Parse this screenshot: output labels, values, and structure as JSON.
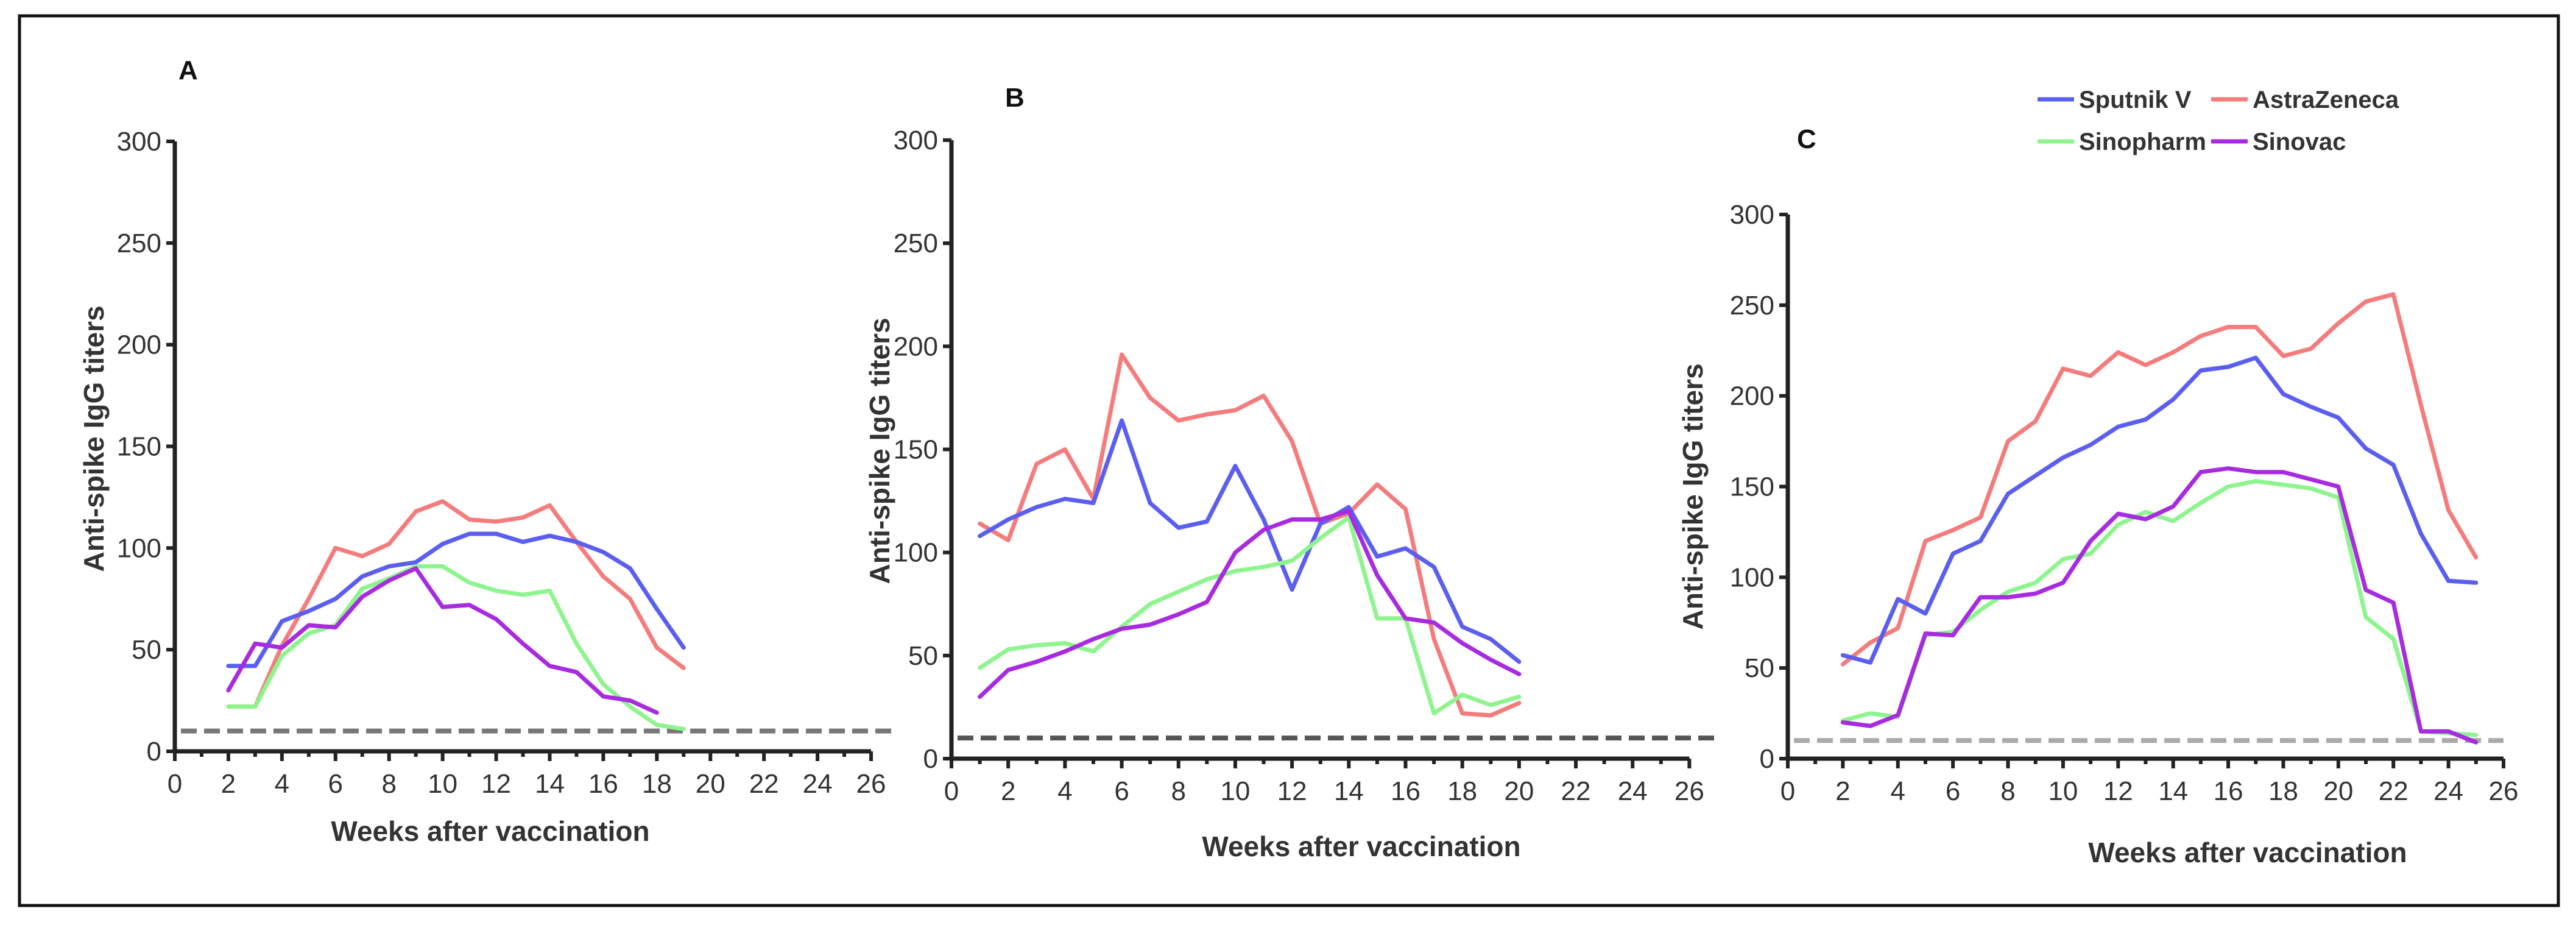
{
  "legend": [
    {
      "name": "Sputnik V",
      "color": "#5b5ff0"
    },
    {
      "name": "AstraZeneca",
      "color": "#f47c7c"
    },
    {
      "name": "Sinopharm",
      "color": "#8ef58e"
    },
    {
      "name": "Sinovac",
      "color": "#a82be0"
    }
  ],
  "chart_data": [
    {
      "type": "line",
      "panel": "A",
      "xlabel": "Weeks after vaccination",
      "ylabel": "Anti-spike IgG titers",
      "xlim": [
        0,
        27
      ],
      "ylim": [
        0,
        300
      ],
      "xticks": [
        0,
        2,
        4,
        6,
        8,
        10,
        12,
        14,
        16,
        18,
        20,
        22,
        24,
        26
      ],
      "yticks": [
        0,
        50,
        100,
        150,
        200,
        250,
        300
      ],
      "threshold": {
        "y": 10,
        "color": "#777777"
      },
      "series": [
        {
          "name": "AstraZeneca",
          "color": "#f47c7c",
          "x": [
            2,
            3,
            4,
            5,
            6,
            7,
            8,
            9,
            10,
            11,
            12,
            13,
            14,
            15,
            16,
            17,
            18,
            19
          ],
          "values": [
            22,
            22,
            52,
            75,
            100,
            96,
            102,
            118,
            123,
            114,
            113,
            115,
            121,
            103,
            86,
            75,
            51,
            41
          ]
        },
        {
          "name": "Sputnik V",
          "color": "#5b5ff0",
          "x": [
            2,
            3,
            4,
            5,
            6,
            7,
            8,
            9,
            10,
            11,
            12,
            13,
            14,
            15,
            16,
            17,
            18,
            19
          ],
          "values": [
            42,
            42,
            64,
            69,
            75,
            86,
            91,
            93,
            102,
            107,
            107,
            103,
            106,
            103,
            98,
            90,
            70,
            51
          ]
        },
        {
          "name": "Sinopharm",
          "color": "#8ef58e",
          "x": [
            2,
            3,
            4,
            5,
            6,
            7,
            8,
            9,
            10,
            11,
            12,
            13,
            14,
            15,
            16,
            17,
            18,
            19
          ],
          "values": [
            22,
            22,
            47,
            58,
            62,
            80,
            85,
            91,
            91,
            83,
            79,
            77,
            79,
            53,
            33,
            22,
            13,
            11
          ]
        },
        {
          "name": "Sinovac",
          "color": "#a82be0",
          "x": [
            2,
            3,
            4,
            5,
            6,
            7,
            8,
            9,
            10,
            11,
            12,
            13,
            14,
            15,
            16,
            17,
            18
          ],
          "values": [
            30,
            53,
            51,
            62,
            61,
            76,
            84,
            90,
            71,
            72,
            65,
            53,
            42,
            39,
            27,
            25,
            19
          ]
        }
      ]
    },
    {
      "type": "line",
      "panel": "B",
      "xlabel": "Weeks after vaccination",
      "ylabel": "Anti-spike IgG titers",
      "xlim": [
        0,
        27
      ],
      "ylim": [
        0,
        300
      ],
      "xticks": [
        0,
        2,
        4,
        6,
        8,
        10,
        12,
        14,
        16,
        18,
        20,
        22,
        24,
        26
      ],
      "yticks": [
        0,
        50,
        100,
        150,
        200,
        250,
        300
      ],
      "threshold": {
        "y": 10,
        "color": "#555555"
      },
      "series": [
        {
          "name": "AstraZeneca",
          "color": "#f47c7c",
          "x": [
            1,
            2,
            3,
            4,
            5,
            6,
            7,
            8,
            9,
            10,
            11,
            12,
            13,
            14,
            15,
            16,
            17,
            18,
            19,
            20
          ],
          "values": [
            114,
            106,
            143,
            150,
            126,
            196,
            175,
            164,
            167,
            169,
            176,
            154,
            114,
            119,
            133,
            121,
            58,
            22,
            21,
            27
          ]
        },
        {
          "name": "Sputnik V",
          "color": "#5b5ff0",
          "x": [
            1,
            2,
            3,
            4,
            5,
            6,
            7,
            8,
            9,
            10,
            11,
            12,
            13,
            14,
            15,
            16,
            17,
            18,
            19,
            20
          ],
          "values": [
            108,
            116,
            122,
            126,
            124,
            164,
            124,
            112,
            115,
            142,
            116,
            82,
            114,
            122,
            98,
            102,
            93,
            64,
            58,
            47
          ]
        },
        {
          "name": "Sinopharm",
          "color": "#8ef58e",
          "x": [
            1,
            2,
            3,
            4,
            5,
            6,
            7,
            8,
            9,
            10,
            11,
            12,
            13,
            14,
            15,
            16,
            17,
            18,
            19,
            20
          ],
          "values": [
            44,
            53,
            55,
            56,
            52,
            64,
            75,
            81,
            87,
            91,
            93,
            96,
            107,
            117,
            68,
            68,
            22,
            31,
            26,
            30
          ]
        },
        {
          "name": "Sinovac",
          "color": "#a82be0",
          "x": [
            1,
            2,
            3,
            4,
            5,
            6,
            7,
            8,
            9,
            10,
            11,
            12,
            13,
            14,
            15,
            16,
            17,
            18,
            19,
            20
          ],
          "values": [
            30,
            43,
            47,
            52,
            58,
            63,
            65,
            70,
            76,
            100,
            111,
            116,
            116,
            120,
            89,
            68,
            66,
            56,
            48,
            41
          ]
        }
      ]
    },
    {
      "type": "line",
      "panel": "C",
      "xlabel": "Weeks after vaccination",
      "ylabel": "Anti-spike IgG titers",
      "xlim": [
        0,
        26
      ],
      "ylim": [
        0,
        300
      ],
      "xticks": [
        0,
        2,
        4,
        6,
        8,
        10,
        12,
        14,
        16,
        18,
        20,
        22,
        24,
        26
      ],
      "yticks": [
        0,
        50,
        100,
        150,
        200,
        250,
        300
      ],
      "threshold": {
        "y": 10,
        "color": "#aaaaaa"
      },
      "series": [
        {
          "name": "AstraZeneca",
          "color": "#f47c7c",
          "x": [
            2,
            3,
            4,
            5,
            6,
            7,
            8,
            9,
            10,
            11,
            12,
            13,
            14,
            15,
            16,
            17,
            18,
            19,
            20,
            21,
            22,
            23,
            24,
            25
          ],
          "values": [
            52,
            64,
            72,
            120,
            126,
            133,
            175,
            186,
            215,
            211,
            224,
            217,
            224,
            233,
            238,
            238,
            222,
            226,
            240,
            252,
            256,
            195,
            137,
            111
          ]
        },
        {
          "name": "Sputnik V",
          "color": "#5b5ff0",
          "x": [
            2,
            3,
            4,
            5,
            6,
            7,
            8,
            9,
            10,
            11,
            12,
            13,
            14,
            15,
            16,
            17,
            18,
            19,
            20,
            21,
            22,
            23,
            24,
            25
          ],
          "values": [
            57,
            53,
            88,
            80,
            113,
            120,
            146,
            156,
            166,
            173,
            183,
            187,
            198,
            214,
            216,
            221,
            201,
            194,
            188,
            171,
            162,
            124,
            98,
            97
          ]
        },
        {
          "name": "Sinopharm",
          "color": "#8ef58e",
          "x": [
            2,
            3,
            4,
            5,
            6,
            7,
            8,
            9,
            10,
            11,
            12,
            13,
            14,
            15,
            16,
            17,
            18,
            19,
            20,
            21,
            22,
            23,
            24,
            25
          ],
          "values": [
            21,
            25,
            23,
            68,
            70,
            82,
            92,
            97,
            110,
            113,
            129,
            136,
            131,
            141,
            150,
            153,
            151,
            149,
            144,
            78,
            66,
            15,
            14,
            13
          ]
        },
        {
          "name": "Sinovac",
          "color": "#a82be0",
          "x": [
            2,
            3,
            4,
            5,
            6,
            7,
            8,
            9,
            10,
            11,
            12,
            13,
            14,
            15,
            16,
            17,
            18,
            19,
            20,
            21,
            22,
            23,
            24,
            25
          ],
          "values": [
            20,
            18,
            24,
            69,
            68,
            89,
            89,
            91,
            97,
            120,
            135,
            132,
            139,
            158,
            160,
            158,
            158,
            154,
            150,
            93,
            86,
            15,
            15,
            9
          ]
        }
      ]
    }
  ]
}
